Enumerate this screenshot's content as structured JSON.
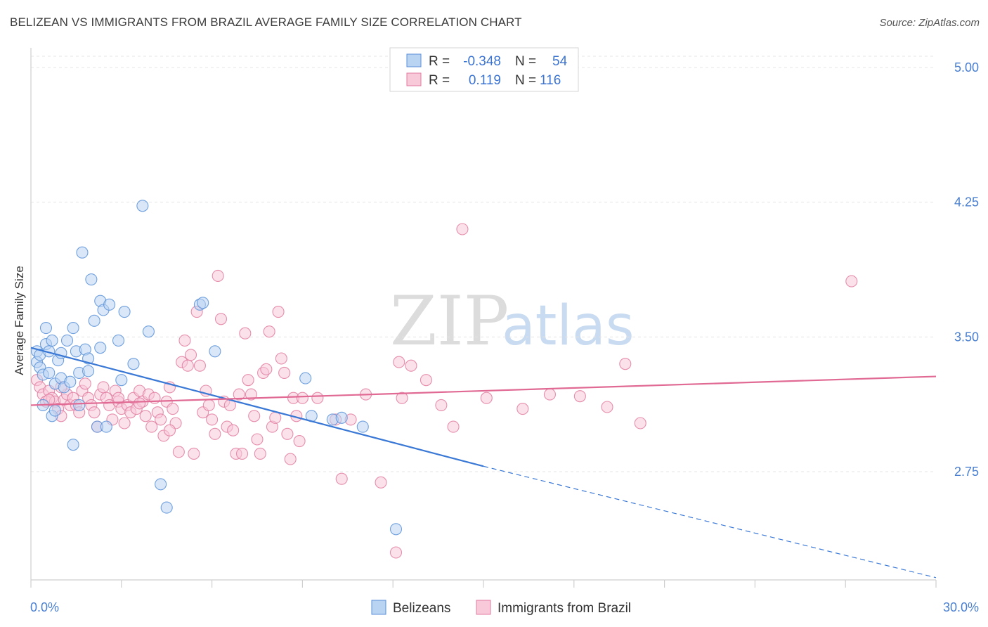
{
  "title": "BELIZEAN VS IMMIGRANTS FROM BRAZIL AVERAGE FAMILY SIZE CORRELATION CHART",
  "source": "Source: ZipAtlas.com",
  "watermark": {
    "zip": "ZIP",
    "atlas": "atlas"
  },
  "legend": {
    "rows": [
      {
        "r_label": "R =",
        "r_value": "-0.348",
        "n_label": "N =",
        "n_value": "54",
        "color": "#a9c8f0"
      },
      {
        "r_label": "R =",
        "r_value": "0.119",
        "n_label": "N =",
        "n_value": "116",
        "color": "#f6b8cb"
      }
    ]
  },
  "bottom_legend": [
    "Belizeans",
    "Immigrants from Brazil"
  ],
  "chart_data": {
    "type": "scatter",
    "xlabel": "",
    "ylabel": "Average Family Size",
    "xlim": [
      0,
      30
    ],
    "ylim": [
      2.1,
      5.1
    ],
    "x_tick_labels": [
      "0.0%",
      "30.0%"
    ],
    "y_ticks": [
      2.75,
      3.5,
      4.25,
      5.0
    ],
    "y_tick_labels": [
      "2.75",
      "3.50",
      "4.25",
      "5.00"
    ],
    "grid": true,
    "series": [
      {
        "name": "Belizeans",
        "color": "#5b92d8",
        "fill": "#b9d3f2",
        "trend": {
          "x0": 0,
          "y0": 3.44,
          "x1": 15,
          "y1": 2.78,
          "dash_x1": 30,
          "dash_y1": 2.16
        },
        "points": [
          [
            0.2,
            3.42
          ],
          [
            0.2,
            3.36
          ],
          [
            0.3,
            3.4
          ],
          [
            0.3,
            3.33
          ],
          [
            0.4,
            3.29
          ],
          [
            0.5,
            3.46
          ],
          [
            0.5,
            3.55
          ],
          [
            0.6,
            3.42
          ],
          [
            0.6,
            3.3
          ],
          [
            0.7,
            3.48
          ],
          [
            0.7,
            3.06
          ],
          [
            0.8,
            3.09
          ],
          [
            0.8,
            3.24
          ],
          [
            0.9,
            3.37
          ],
          [
            1.0,
            3.41
          ],
          [
            1.0,
            3.27
          ],
          [
            1.1,
            3.22
          ],
          [
            1.2,
            3.48
          ],
          [
            1.3,
            3.25
          ],
          [
            1.4,
            3.55
          ],
          [
            1.5,
            3.42
          ],
          [
            1.6,
            3.3
          ],
          [
            1.6,
            3.12
          ],
          [
            1.7,
            3.97
          ],
          [
            1.8,
            3.43
          ],
          [
            1.9,
            3.38
          ],
          [
            1.9,
            3.31
          ],
          [
            2.0,
            3.82
          ],
          [
            2.1,
            3.59
          ],
          [
            2.2,
            3.0
          ],
          [
            2.3,
            3.44
          ],
          [
            2.3,
            3.7
          ],
          [
            2.4,
            3.65
          ],
          [
            2.5,
            3.0
          ],
          [
            2.6,
            3.68
          ],
          [
            2.9,
            3.48
          ],
          [
            3.0,
            3.26
          ],
          [
            3.1,
            3.64
          ],
          [
            3.4,
            3.35
          ],
          [
            3.7,
            4.23
          ],
          [
            3.9,
            3.53
          ],
          [
            4.3,
            2.68
          ],
          [
            4.5,
            2.55
          ],
          [
            5.6,
            3.68
          ],
          [
            5.7,
            3.69
          ],
          [
            6.1,
            3.42
          ],
          [
            9.1,
            3.27
          ],
          [
            9.3,
            3.06
          ],
          [
            10.0,
            3.04
          ],
          [
            10.3,
            3.05
          ],
          [
            11.0,
            3.0
          ],
          [
            12.1,
            2.43
          ],
          [
            0.4,
            3.12
          ],
          [
            1.4,
            2.9
          ]
        ]
      },
      {
        "name": "Immigrants from Brazil",
        "color": "#e17ca0",
        "fill": "#f8c9d8",
        "trend": {
          "x0": 0,
          "y0": 3.12,
          "x1": 30,
          "y1": 3.28
        },
        "points": [
          [
            0.2,
            3.26
          ],
          [
            0.3,
            3.22
          ],
          [
            0.4,
            3.18
          ],
          [
            0.5,
            3.14
          ],
          [
            0.6,
            3.2
          ],
          [
            0.7,
            3.16
          ],
          [
            0.8,
            3.14
          ],
          [
            0.9,
            3.1
          ],
          [
            1.0,
            3.06
          ],
          [
            1.1,
            3.15
          ],
          [
            1.2,
            3.18
          ],
          [
            1.3,
            3.12
          ],
          [
            1.4,
            3.16
          ],
          [
            1.5,
            3.12
          ],
          [
            1.6,
            3.08
          ],
          [
            1.7,
            3.2
          ],
          [
            1.8,
            3.24
          ],
          [
            1.9,
            3.16
          ],
          [
            2.0,
            3.12
          ],
          [
            2.1,
            3.08
          ],
          [
            2.2,
            3.0
          ],
          [
            2.3,
            3.18
          ],
          [
            2.4,
            3.22
          ],
          [
            2.5,
            3.16
          ],
          [
            2.6,
            3.12
          ],
          [
            2.7,
            3.04
          ],
          [
            2.8,
            3.2
          ],
          [
            2.9,
            3.14
          ],
          [
            3.0,
            3.1
          ],
          [
            3.1,
            3.02
          ],
          [
            3.2,
            3.12
          ],
          [
            3.3,
            3.08
          ],
          [
            3.4,
            3.16
          ],
          [
            3.5,
            3.1
          ],
          [
            3.6,
            3.2
          ],
          [
            3.7,
            3.14
          ],
          [
            3.8,
            3.06
          ],
          [
            3.9,
            3.18
          ],
          [
            4.0,
            3.0
          ],
          [
            4.1,
            3.16
          ],
          [
            4.2,
            3.08
          ],
          [
            4.3,
            3.04
          ],
          [
            4.4,
            2.95
          ],
          [
            4.5,
            3.14
          ],
          [
            4.6,
            3.22
          ],
          [
            4.7,
            3.1
          ],
          [
            4.8,
            3.02
          ],
          [
            4.9,
            2.86
          ],
          [
            5.0,
            3.36
          ],
          [
            5.1,
            3.48
          ],
          [
            5.2,
            3.34
          ],
          [
            5.3,
            3.4
          ],
          [
            5.4,
            2.85
          ],
          [
            5.5,
            3.64
          ],
          [
            5.6,
            3.34
          ],
          [
            5.7,
            3.08
          ],
          [
            5.8,
            3.2
          ],
          [
            5.9,
            3.12
          ],
          [
            6.0,
            3.04
          ],
          [
            6.1,
            2.96
          ],
          [
            6.2,
            3.84
          ],
          [
            6.3,
            3.6
          ],
          [
            6.4,
            3.14
          ],
          [
            6.5,
            3.0
          ],
          [
            6.6,
            3.12
          ],
          [
            6.7,
            2.98
          ],
          [
            6.8,
            2.85
          ],
          [
            6.9,
            3.18
          ],
          [
            7.0,
            2.85
          ],
          [
            7.1,
            3.52
          ],
          [
            7.2,
            3.26
          ],
          [
            7.3,
            3.18
          ],
          [
            7.4,
            3.06
          ],
          [
            7.5,
            2.93
          ],
          [
            7.6,
            2.85
          ],
          [
            7.7,
            3.3
          ],
          [
            7.8,
            3.32
          ],
          [
            7.9,
            3.53
          ],
          [
            8.0,
            3.0
          ],
          [
            8.1,
            3.05
          ],
          [
            8.2,
            3.64
          ],
          [
            8.3,
            3.38
          ],
          [
            8.4,
            3.3
          ],
          [
            8.5,
            2.96
          ],
          [
            8.6,
            2.82
          ],
          [
            8.7,
            3.16
          ],
          [
            8.8,
            3.06
          ],
          [
            8.9,
            2.92
          ],
          [
            9.0,
            3.16
          ],
          [
            9.5,
            3.16
          ],
          [
            10.1,
            3.04
          ],
          [
            10.3,
            2.71
          ],
          [
            10.6,
            3.04
          ],
          [
            11.1,
            3.18
          ],
          [
            11.6,
            2.69
          ],
          [
            12.2,
            3.36
          ],
          [
            12.3,
            3.16
          ],
          [
            12.6,
            3.34
          ],
          [
            13.1,
            3.26
          ],
          [
            13.6,
            3.12
          ],
          [
            14.0,
            3.0
          ],
          [
            14.3,
            4.1
          ],
          [
            15.1,
            3.16
          ],
          [
            16.3,
            3.1
          ],
          [
            17.2,
            3.18
          ],
          [
            18.2,
            3.17
          ],
          [
            19.1,
            3.11
          ],
          [
            19.7,
            3.35
          ],
          [
            20.2,
            3.02
          ],
          [
            27.2,
            3.81
          ],
          [
            12.1,
            2.3
          ],
          [
            4.6,
            2.98
          ],
          [
            2.9,
            3.16
          ],
          [
            3.6,
            3.13
          ],
          [
            1.0,
            3.22
          ],
          [
            0.6,
            3.15
          ]
        ]
      }
    ]
  }
}
